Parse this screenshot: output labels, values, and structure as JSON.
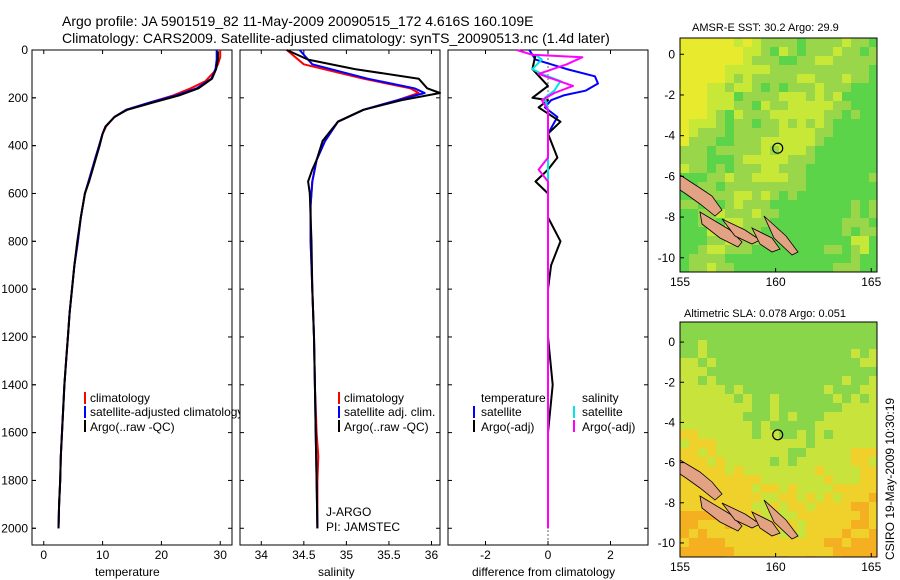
{
  "figure": {
    "title_line1": "Argo profile: JA 5901519_82 11-May-2009 20090515_172 4.616S 160.109E",
    "title_line2": "Climatology: CARS2009. Satellite-adjusted climatology: synTS_20090513.nc (1.4d later)",
    "side_label": "CSIRO 19-May-2009 10:30:19",
    "colors": {
      "climatology": "#ff0000",
      "adjusted": "#0000ff",
      "argo": "#000000",
      "sat_salinity": "#00e5e5",
      "argo_adj_salinity": "#ff00ff"
    }
  },
  "chart_data": [
    {
      "type": "line",
      "id": "temperature",
      "xlabel": "temperature",
      "ylabel": "",
      "xlim": [
        -2,
        32
      ],
      "ylim": [
        0,
        2070
      ],
      "y_inverted": true,
      "xticks": [
        0,
        10,
        20,
        30
      ],
      "yticks": [
        0,
        200,
        400,
        600,
        800,
        1000,
        1200,
        1400,
        1600,
        1800,
        2000
      ],
      "legend": [
        "climatology",
        "satellite-adjusted climatology",
        "Argo(..raw -QC)"
      ],
      "series": [
        {
          "name": "climatology",
          "color": "#ff0000",
          "points": [
            [
              30,
              0
            ],
            [
              30,
              30
            ],
            [
              29.6,
              60
            ],
            [
              29,
              90
            ],
            [
              27.5,
              130
            ],
            [
              25,
              160
            ],
            [
              22,
              190
            ],
            [
              18,
              220
            ],
            [
              14,
              250
            ],
            [
              12,
              280
            ],
            [
              10.6,
              320
            ],
            [
              10,
              350
            ],
            [
              9.4,
              400
            ],
            [
              8.8,
              450
            ],
            [
              8.2,
              500
            ],
            [
              7.6,
              550
            ],
            [
              7,
              600
            ],
            [
              6.3,
              700
            ],
            [
              5.8,
              800
            ],
            [
              5.2,
              900
            ],
            [
              4.8,
              1000
            ],
            [
              4.4,
              1100
            ],
            [
              4.1,
              1200
            ],
            [
              3.8,
              1300
            ],
            [
              3.5,
              1400
            ],
            [
              3.3,
              1500
            ],
            [
              3.1,
              1600
            ],
            [
              2.9,
              1700
            ],
            [
              2.8,
              1800
            ],
            [
              2.6,
              1900
            ],
            [
              2.5,
              2000
            ]
          ]
        },
        {
          "name": "satellite-adjusted climatology",
          "color": "#0000ff",
          "points": [
            [
              29.4,
              0
            ],
            [
              29.4,
              40
            ],
            [
              29.2,
              80
            ],
            [
              28.5,
              120
            ],
            [
              26,
              160
            ],
            [
              22.5,
              190
            ],
            [
              18,
              220
            ],
            [
              14,
              250
            ],
            [
              12,
              280
            ],
            [
              10.5,
              320
            ],
            [
              10,
              350
            ],
            [
              9.4,
              400
            ],
            [
              8.8,
              450
            ],
            [
              8.2,
              500
            ],
            [
              7.6,
              550
            ],
            [
              7,
              600
            ],
            [
              6.3,
              700
            ],
            [
              5.8,
              800
            ],
            [
              5.2,
              900
            ],
            [
              4.8,
              1000
            ],
            [
              4.4,
              1100
            ],
            [
              4.1,
              1200
            ],
            [
              3.8,
              1300
            ],
            [
              3.5,
              1400
            ],
            [
              3.3,
              1500
            ],
            [
              3.1,
              1600
            ],
            [
              2.9,
              1700
            ],
            [
              2.8,
              1800
            ],
            [
              2.6,
              1900
            ],
            [
              2.5,
              2000
            ]
          ]
        },
        {
          "name": "Argo(..raw -QC)",
          "color": "#000000",
          "points": [
            [
              29.6,
              5
            ],
            [
              29.6,
              40
            ],
            [
              29.3,
              80
            ],
            [
              28.6,
              120
            ],
            [
              26.3,
              160
            ],
            [
              23,
              190
            ],
            [
              18.5,
              220
            ],
            [
              14.2,
              250
            ],
            [
              12,
              280
            ],
            [
              10.5,
              320
            ],
            [
              10,
              350
            ],
            [
              9.5,
              400
            ],
            [
              8.9,
              450
            ],
            [
              8.3,
              500
            ],
            [
              7.7,
              550
            ],
            [
              7,
              600
            ],
            [
              6.3,
              700
            ],
            [
              5.7,
              800
            ],
            [
              5.2,
              900
            ],
            [
              4.8,
              1000
            ],
            [
              4.4,
              1100
            ],
            [
              4.1,
              1200
            ],
            [
              3.8,
              1300
            ],
            [
              3.5,
              1400
            ],
            [
              3.3,
              1500
            ],
            [
              3.1,
              1600
            ],
            [
              2.9,
              1700
            ],
            [
              2.8,
              1800
            ],
            [
              2.6,
              1900
            ],
            [
              2.5,
              2000
            ]
          ]
        }
      ]
    },
    {
      "type": "line",
      "id": "salinity",
      "xlabel": "salinity",
      "ylabel": "",
      "xlim": [
        33.75,
        36.1
      ],
      "ylim": [
        0,
        2070
      ],
      "y_inverted": true,
      "xticks": [
        34,
        34.5,
        35,
        35.5,
        36
      ],
      "legend": [
        "climatology",
        "satellite adj. clim.",
        "Argo(..raw -QC)"
      ],
      "annotation": [
        "J-ARGO",
        "PI: JAMSTEC"
      ],
      "series": [
        {
          "name": "climatology",
          "color": "#ff0000",
          "points": [
            [
              34.3,
              0
            ],
            [
              34.5,
              60
            ],
            [
              35.2,
              120
            ],
            [
              35.75,
              160
            ],
            [
              35.85,
              180
            ],
            [
              35.6,
              210
            ],
            [
              35.2,
              250
            ],
            [
              34.9,
              300
            ],
            [
              34.75,
              380
            ],
            [
              34.65,
              460
            ],
            [
              34.6,
              550
            ],
            [
              34.58,
              650
            ],
            [
              34.58,
              800
            ],
            [
              34.6,
              1000
            ],
            [
              34.62,
              1200
            ],
            [
              34.63,
              1400
            ],
            [
              34.65,
              1600
            ],
            [
              34.67,
              1700
            ],
            [
              34.66,
              1800
            ],
            [
              34.66,
              1900
            ],
            [
              34.66,
              2000
            ]
          ]
        },
        {
          "name": "satellite adj. clim.",
          "color": "#0000ff",
          "points": [
            [
              34.45,
              0
            ],
            [
              34.6,
              60
            ],
            [
              35.25,
              120
            ],
            [
              35.8,
              160
            ],
            [
              35.92,
              180
            ],
            [
              35.6,
              210
            ],
            [
              35.2,
              250
            ],
            [
              34.9,
              300
            ],
            [
              34.75,
              380
            ],
            [
              34.65,
              460
            ],
            [
              34.6,
              550
            ],
            [
              34.58,
              650
            ],
            [
              34.58,
              800
            ],
            [
              34.6,
              1000
            ],
            [
              34.62,
              1200
            ],
            [
              34.63,
              1400
            ],
            [
              34.64,
              1600
            ],
            [
              34.65,
              1800
            ],
            [
              34.66,
              2000
            ]
          ]
        },
        {
          "name": "Argo(..raw -QC)",
          "color": "#000000",
          "points": [
            [
              34.3,
              0
            ],
            [
              34.55,
              40
            ],
            [
              35.1,
              80
            ],
            [
              35.85,
              120
            ],
            [
              35.95,
              160
            ],
            [
              36.1,
              180
            ],
            [
              35.65,
              210
            ],
            [
              35.2,
              250
            ],
            [
              34.9,
              300
            ],
            [
              34.72,
              380
            ],
            [
              34.65,
              460
            ],
            [
              34.6,
              500
            ],
            [
              34.55,
              550
            ],
            [
              34.57,
              600
            ],
            [
              34.58,
              700
            ],
            [
              34.59,
              800
            ],
            [
              34.6,
              1000
            ],
            [
              34.62,
              1200
            ],
            [
              34.63,
              1400
            ],
            [
              34.64,
              1600
            ],
            [
              34.65,
              1800
            ],
            [
              34.66,
              2000
            ]
          ]
        }
      ]
    },
    {
      "type": "line",
      "id": "difference",
      "xlabel": "difference from climatology",
      "ylabel": "",
      "xlim": [
        -3.2,
        3.2
      ],
      "ylim": [
        0,
        2070
      ],
      "y_inverted": true,
      "xticks": [
        -2,
        0,
        2
      ],
      "legend_headers": [
        "temperature",
        "salinity"
      ],
      "legend": [
        "satellite",
        "Argo(-adj)",
        "satellite",
        "Argo(-adj)"
      ],
      "series": [
        {
          "name": "temperature satellite",
          "color": "#0000ff",
          "points": [
            [
              -0.6,
              0
            ],
            [
              -0.4,
              40
            ],
            [
              0.6,
              80
            ],
            [
              1.5,
              110
            ],
            [
              1.6,
              140
            ],
            [
              1.2,
              170
            ],
            [
              0.5,
              190
            ],
            [
              0.1,
              210
            ],
            [
              -0.1,
              240
            ],
            [
              0.3,
              280
            ],
            [
              0,
              350
            ],
            [
              0,
              500
            ],
            [
              0,
              800
            ],
            [
              0,
              1200
            ],
            [
              0,
              1600
            ],
            [
              0,
              2000
            ]
          ]
        },
        {
          "name": "temperature Argo(-adj)",
          "color": "#000000",
          "points": [
            [
              -0.4,
              20
            ],
            [
              -0.5,
              80
            ],
            [
              0,
              150
            ],
            [
              -0.5,
              200
            ],
            [
              0,
              210
            ],
            [
              -0.3,
              240
            ],
            [
              0.4,
              300
            ],
            [
              0,
              350
            ],
            [
              0.3,
              450
            ],
            [
              0,
              500
            ],
            [
              -0.4,
              550
            ],
            [
              0,
              600
            ],
            [
              0,
              700
            ],
            [
              0.4,
              800
            ],
            [
              0.1,
              900
            ],
            [
              0,
              1000
            ],
            [
              0,
              1200
            ],
            [
              0.15,
              1400
            ],
            [
              0,
              1600
            ],
            [
              0,
              2000
            ]
          ]
        },
        {
          "name": "salinity satellite",
          "color": "#00e5e5",
          "points": [
            [
              -0.4,
              20
            ],
            [
              -0.2,
              40
            ],
            [
              -0.5,
              80
            ],
            [
              -0.2,
              100
            ],
            [
              0.4,
              130
            ],
            [
              0.2,
              170
            ],
            [
              -0.1,
              200
            ],
            [
              0,
              250
            ],
            [
              0,
              400
            ],
            [
              0,
              800
            ],
            [
              0,
              1200
            ],
            [
              0,
              1600
            ],
            [
              0,
              2000
            ]
          ]
        },
        {
          "name": "salinity Argo(-adj)",
          "color": "#ff00ff",
          "points": [
            [
              -1,
              0
            ],
            [
              -0.5,
              20
            ],
            [
              1.1,
              30
            ],
            [
              0.6,
              60
            ],
            [
              -0.3,
              100
            ],
            [
              0.8,
              150
            ],
            [
              0.2,
              180
            ],
            [
              -0.2,
              210
            ],
            [
              0,
              250
            ],
            [
              0,
              450
            ],
            [
              -0.3,
              500
            ],
            [
              0,
              550
            ],
            [
              0,
              800
            ],
            [
              0,
              1200
            ],
            [
              0,
              1600
            ],
            [
              0,
              2000
            ]
          ]
        }
      ]
    },
    {
      "type": "heatmap",
      "id": "sst_map",
      "title": "AMSR-E SST: 30.2 Argo: 29.9",
      "xlim": [
        155,
        165.3
      ],
      "ylim": [
        -10.7,
        0.8
      ],
      "xticks": [
        155,
        160,
        165
      ],
      "yticks": [
        0,
        -2,
        -4,
        -6,
        -8,
        -10
      ],
      "colors": [
        "#9ad64a",
        "#5cd44a",
        "#c8e838",
        "#e8ea2e"
      ],
      "argo_position": [
        160.109,
        -4.616
      ]
    },
    {
      "type": "heatmap",
      "id": "sla_map",
      "title": "Altimetric SLA: 0.078 Argo: 0.051",
      "xlim": [
        155,
        165.3
      ],
      "ylim": [
        -10.7,
        1
      ],
      "xticks": [
        155,
        160,
        165
      ],
      "yticks": [
        0,
        -2,
        -4,
        -6,
        -8,
        -10
      ],
      "colors": [
        "#8ad64a",
        "#c8e43c",
        "#f0d02a",
        "#f4b020"
      ],
      "argo_position": [
        160.109,
        -4.616
      ]
    }
  ]
}
